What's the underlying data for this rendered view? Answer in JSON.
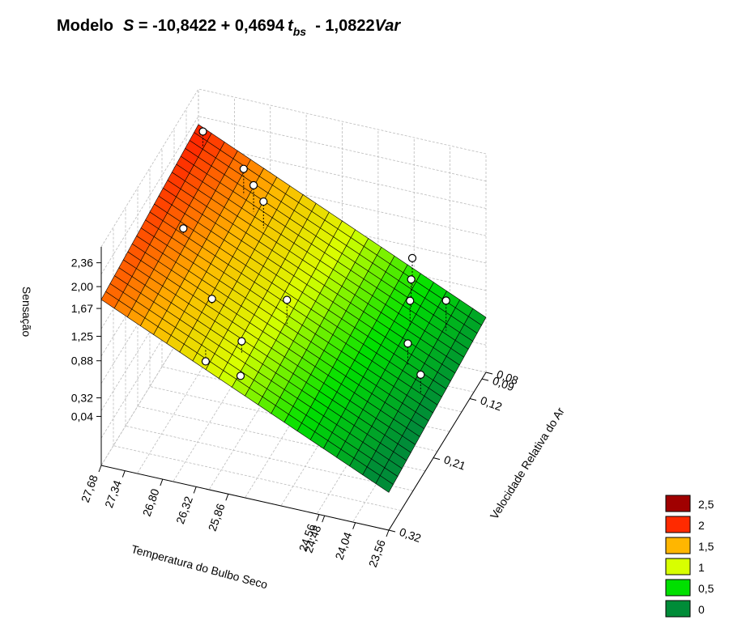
{
  "chart_data": {
    "type": "surface3d",
    "title": {
      "label": "Modelo",
      "lhs": "S",
      "eq": " = -10,8422 + 0,4694",
      "t": "t",
      "sub": "bs",
      "minus": "  - 1,0822",
      "var": "Var"
    },
    "model": {
      "intercept": -10.8422,
      "t": 0.4694,
      "var": -1.0822
    },
    "xlabel": "Temperatura do Bulbo Seco",
    "ylabel": "Velocidade Relativa do Ar",
    "zlabel": "Sensação",
    "xlim": [
      23.56,
      27.68
    ],
    "ylim": [
      0.08,
      0.32
    ],
    "zlim": [
      -0.7,
      2.6
    ],
    "xticks": [
      {
        "value": 27.68,
        "label": "27,68"
      },
      {
        "value": 27.34,
        "label": "27,34"
      },
      {
        "value": 26.8,
        "label": "26,80"
      },
      {
        "value": 26.32,
        "label": "26,32"
      },
      {
        "value": 25.86,
        "label": "25,86"
      },
      {
        "value": 24.56,
        "label": "24,56"
      },
      {
        "value": 24.48,
        "label": "24,48"
      },
      {
        "value": 24.04,
        "label": "24,04"
      },
      {
        "value": 23.56,
        "label": "23,56"
      }
    ],
    "yticks": [
      {
        "value": 0.08,
        "label": "0,08"
      },
      {
        "value": 0.09,
        "label": "0,09"
      },
      {
        "value": 0.12,
        "label": "0,12"
      },
      {
        "value": 0.21,
        "label": "0,21"
      },
      {
        "value": 0.32,
        "label": "0,32"
      }
    ],
    "zticks": [
      {
        "value": 2.36,
        "label": "2,36"
      },
      {
        "value": 2.0,
        "label": "2,00"
      },
      {
        "value": 1.67,
        "label": "1,67"
      },
      {
        "value": 1.25,
        "label": "1,25"
      },
      {
        "value": 0.88,
        "label": "0,88"
      },
      {
        "value": 0.32,
        "label": "0,32"
      },
      {
        "value": 0.04,
        "label": "0,04"
      }
    ],
    "legend": {
      "levels": [
        {
          "value": 2.5,
          "label": "2,5"
        },
        {
          "value": 2,
          "label": "2"
        },
        {
          "value": 1.5,
          "label": "1,5"
        },
        {
          "value": 1,
          "label": "1"
        },
        {
          "value": 0.5,
          "label": "0,5"
        },
        {
          "value": 0,
          "label": "0"
        }
      ],
      "colors": [
        "#a00000",
        "#ff2a00",
        "#ffb600",
        "#d8ff00",
        "#00e000",
        "#008c38"
      ]
    },
    "points": {
      "t": [
        27.5,
        27.2,
        26.8,
        26.6,
        26.4,
        26.3,
        26.5,
        25.9,
        25.8,
        25.6,
        24.5,
        24.4,
        24.3,
        24.1,
        23.9,
        23.8
      ],
      "v": [
        0.1,
        0.2,
        0.12,
        0.13,
        0.14,
        0.3,
        0.25,
        0.28,
        0.3,
        0.22,
        0.1,
        0.12,
        0.14,
        0.18,
        0.12,
        0.2
      ],
      "s": [
        2.2,
        1.8,
        2.0,
        1.9,
        1.8,
        1.0,
        1.4,
        1.2,
        0.9,
        1.3,
        1.0,
        0.9,
        0.8,
        0.6,
        0.7,
        0.4
      ]
    }
  }
}
